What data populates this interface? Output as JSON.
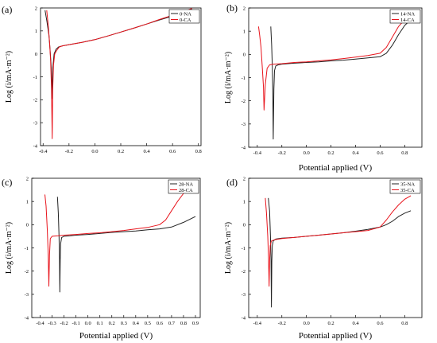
{
  "chart_data": [
    {
      "type": "line",
      "panel_label": "(a)",
      "xlabel": "",
      "ylabel": "Log (i/mA·m⁻²)",
      "xlim": [
        -0.42,
        0.82
      ],
      "ylim": [
        -4,
        2
      ],
      "xticks": [
        -0.4,
        -0.2,
        0.0,
        0.2,
        0.4,
        0.6,
        0.8
      ],
      "xtick_labels": [
        "-0.4",
        "-0.2",
        "0.0",
        "0.2",
        "0.4",
        "0.6",
        "0.8"
      ],
      "yticks": [
        -4,
        -3,
        -2,
        -1,
        0,
        1,
        2
      ],
      "ytick_labels": [
        "-4",
        "-3",
        "-2",
        "-1",
        "0",
        "1",
        "2"
      ],
      "legend_position": "top-right",
      "series": [
        {
          "name": "0-NA",
          "color": "#222222",
          "x": [
            -0.385,
            -0.37,
            -0.355,
            -0.345,
            -0.337,
            -0.332,
            -0.33,
            -0.328,
            -0.325,
            -0.315,
            -0.3,
            -0.28,
            -0.25,
            -0.2,
            -0.1,
            0.0,
            0.1,
            0.2,
            0.3,
            0.4,
            0.5,
            0.6,
            0.7,
            0.75
          ],
          "y": [
            1.9,
            1.4,
            0.8,
            0.1,
            -0.6,
            -1.3,
            -1.95,
            -1.4,
            -0.6,
            0.0,
            0.2,
            0.3,
            0.35,
            0.4,
            0.5,
            0.62,
            0.78,
            0.95,
            1.12,
            1.3,
            1.48,
            1.65,
            1.85,
            1.95
          ]
        },
        {
          "name": "0-CA",
          "color": "#e8141c",
          "x": [
            -0.372,
            -0.36,
            -0.35,
            -0.342,
            -0.335,
            -0.33,
            -0.326,
            -0.32,
            -0.31,
            -0.295,
            -0.275,
            -0.25,
            -0.2,
            -0.1,
            0.0,
            0.1,
            0.2,
            0.3,
            0.4,
            0.5,
            0.6,
            0.7,
            0.75
          ],
          "y": [
            1.9,
            1.2,
            0.5,
            -0.3,
            -1.5,
            -3.7,
            -1.6,
            -0.5,
            0.0,
            0.15,
            0.3,
            0.35,
            0.4,
            0.5,
            0.62,
            0.78,
            0.95,
            1.12,
            1.3,
            1.5,
            1.68,
            1.88,
            1.98
          ]
        }
      ]
    },
    {
      "type": "line",
      "panel_label": "(b)",
      "xlabel": "Potential applied (V)",
      "ylabel": "Log (i/mA·m⁻²)",
      "xlim": [
        -0.47,
        0.94
      ],
      "ylim": [
        -4,
        2
      ],
      "xticks": [
        -0.4,
        -0.2,
        0.0,
        0.2,
        0.4,
        0.6,
        0.8
      ],
      "xtick_labels": [
        "-0.4",
        "-0.2",
        "0.0",
        "0.2",
        "0.4",
        "0.6",
        "0.8"
      ],
      "yticks": [
        -4,
        -3,
        -2,
        -1,
        0,
        1,
        2
      ],
      "ytick_labels": [
        "-4",
        "-3",
        "-2",
        "-1",
        "0",
        "1",
        "2"
      ],
      "legend_position": "top-right",
      "series": [
        {
          "name": "14-NA",
          "color": "#222222",
          "x": [
            -0.29,
            -0.283,
            -0.278,
            -0.274,
            -0.27,
            -0.265,
            -0.26,
            -0.25,
            -0.23,
            -0.2,
            -0.1,
            0.0,
            0.1,
            0.2,
            0.3,
            0.4,
            0.5,
            0.6,
            0.65,
            0.7,
            0.75,
            0.8,
            0.85,
            0.9
          ],
          "y": [
            1.2,
            0.4,
            -0.5,
            -1.5,
            -3.65,
            -1.5,
            -0.7,
            -0.5,
            -0.45,
            -0.42,
            -0.38,
            -0.35,
            -0.32,
            -0.28,
            -0.25,
            -0.2,
            -0.15,
            -0.1,
            0.05,
            0.4,
            0.85,
            1.25,
            1.5,
            1.7
          ]
        },
        {
          "name": "14-CA",
          "color": "#e8141c",
          "x": [
            -0.39,
            -0.38,
            -0.37,
            -0.36,
            -0.35,
            -0.345,
            -0.335,
            -0.32,
            -0.3,
            -0.27,
            -0.2,
            -0.1,
            0.0,
            0.1,
            0.2,
            0.3,
            0.4,
            0.5,
            0.6,
            0.65,
            0.7,
            0.75,
            0.8,
            0.86
          ],
          "y": [
            1.2,
            0.8,
            0.3,
            -0.5,
            -1.4,
            -2.4,
            -1.3,
            -0.6,
            -0.45,
            -0.42,
            -0.4,
            -0.35,
            -0.32,
            -0.28,
            -0.24,
            -0.18,
            -0.12,
            -0.05,
            0.05,
            0.3,
            0.75,
            1.2,
            1.5,
            1.75
          ]
        }
      ]
    },
    {
      "type": "line",
      "panel_label": "(c)",
      "xlabel": "Potential applied (V)",
      "ylabel": "Log (i/mA·m⁻²)",
      "xlim": [
        -0.47,
        0.94
      ],
      "ylim": [
        -4,
        2
      ],
      "xticks": [
        -0.4,
        -0.3,
        -0.2,
        -0.1,
        0.0,
        0.1,
        0.2,
        0.3,
        0.4,
        0.5,
        0.6,
        0.7,
        0.8,
        0.9
      ],
      "xtick_labels": [
        "-0.4",
        "-0.3",
        "-0.2",
        "-0.1",
        "0.0",
        "0.1",
        "0.2",
        "0.3",
        "0.4",
        "0.5",
        "0.6",
        "0.7",
        "0.8",
        "0.9"
      ],
      "yticks": [
        -4,
        -3,
        -2,
        -1,
        0,
        1,
        2
      ],
      "ytick_labels": [
        "-4",
        "-3",
        "-2",
        "-1",
        "0",
        "1",
        "2"
      ],
      "legend_position": "top-right",
      "series": [
        {
          "name": "28-NA",
          "color": "#222222",
          "x": [
            -0.255,
            -0.248,
            -0.242,
            -0.238,
            -0.235,
            -0.232,
            -0.228,
            -0.22,
            -0.2,
            -0.15,
            -0.1,
            0.0,
            0.1,
            0.2,
            0.3,
            0.4,
            0.5,
            0.6,
            0.7,
            0.8,
            0.9
          ],
          "y": [
            1.2,
            0.5,
            -0.5,
            -1.5,
            -2.9,
            -1.5,
            -0.8,
            -0.55,
            -0.5,
            -0.48,
            -0.45,
            -0.42,
            -0.38,
            -0.33,
            -0.3,
            -0.27,
            -0.22,
            -0.18,
            -0.1,
            0.1,
            0.35
          ]
        },
        {
          "name": "28-CA",
          "color": "#e8141c",
          "x": [
            -0.36,
            -0.35,
            -0.34,
            -0.332,
            -0.327,
            -0.322,
            -0.315,
            -0.3,
            -0.25,
            -0.2,
            -0.1,
            0.0,
            0.1,
            0.2,
            0.3,
            0.4,
            0.5,
            0.6,
            0.65,
            0.7,
            0.75,
            0.8
          ],
          "y": [
            1.3,
            0.8,
            -0.2,
            -1.3,
            -2.65,
            -1.3,
            -0.6,
            -0.5,
            -0.48,
            -0.45,
            -0.42,
            -0.38,
            -0.35,
            -0.3,
            -0.25,
            -0.18,
            -0.12,
            0.0,
            0.2,
            0.6,
            1.0,
            1.35
          ]
        }
      ]
    },
    {
      "type": "line",
      "panel_label": "(d)",
      "xlabel": "Potential applied (V)",
      "ylabel": "Log (i/mA·m⁻²)",
      "xlim": [
        -0.47,
        0.94
      ],
      "ylim": [
        -4,
        2
      ],
      "xticks": [
        -0.4,
        -0.2,
        0.0,
        0.2,
        0.4,
        0.6,
        0.8
      ],
      "xtick_labels": [
        "-0.4",
        "-0.2",
        "0.0",
        "0.2",
        "0.4",
        "0.6",
        "0.8"
      ],
      "yticks": [
        -4,
        -3,
        -2,
        -1,
        0,
        1,
        2
      ],
      "ytick_labels": [
        "-4",
        "-3",
        "-2",
        "-1",
        "0",
        "1",
        "2"
      ],
      "legend_position": "top-right",
      "series": [
        {
          "name": "35-NA",
          "color": "#222222",
          "x": [
            -0.31,
            -0.3,
            -0.293,
            -0.288,
            -0.285,
            -0.282,
            -0.278,
            -0.27,
            -0.25,
            -0.2,
            -0.1,
            0.0,
            0.1,
            0.2,
            0.3,
            0.4,
            0.5,
            0.6,
            0.65,
            0.7,
            0.75,
            0.8,
            0.85
          ],
          "y": [
            1.15,
            0.6,
            -0.5,
            -1.5,
            -3.55,
            -1.6,
            -0.9,
            -0.7,
            -0.62,
            -0.58,
            -0.55,
            -0.5,
            -0.45,
            -0.4,
            -0.35,
            -0.28,
            -0.2,
            -0.1,
            0.0,
            0.15,
            0.35,
            0.5,
            0.6
          ]
        },
        {
          "name": "35-CA",
          "color": "#e8141c",
          "x": [
            -0.335,
            -0.325,
            -0.315,
            -0.308,
            -0.304,
            -0.3,
            -0.295,
            -0.285,
            -0.26,
            -0.2,
            -0.1,
            0.0,
            0.1,
            0.2,
            0.3,
            0.4,
            0.5,
            0.6,
            0.65,
            0.7,
            0.75,
            0.8,
            0.85
          ],
          "y": [
            1.15,
            0.5,
            -0.5,
            -1.5,
            -2.65,
            -1.6,
            -0.9,
            -0.7,
            -0.65,
            -0.6,
            -0.55,
            -0.5,
            -0.45,
            -0.4,
            -0.35,
            -0.3,
            -0.25,
            -0.1,
            0.2,
            0.55,
            0.85,
            1.1,
            1.25
          ]
        }
      ]
    }
  ]
}
